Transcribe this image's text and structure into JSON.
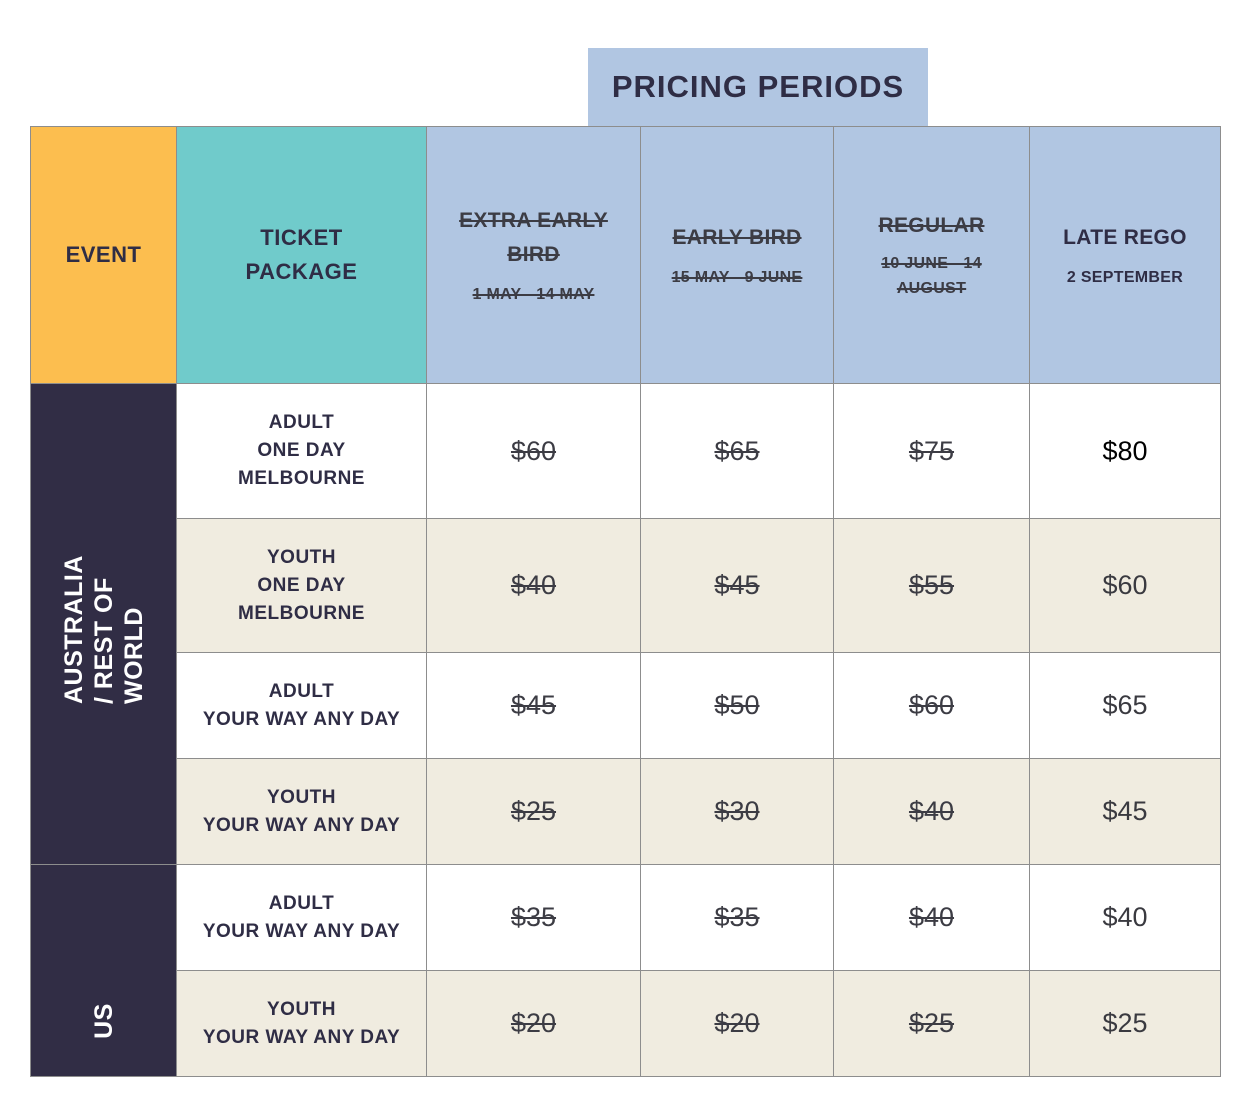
{
  "banner": {
    "title": "PRICING PERIODS"
  },
  "header": {
    "event": "EVENT",
    "ticket_line1": "TICKET",
    "ticket_line2": "PACKAGE",
    "periods": [
      {
        "name_line1": "EXTRA EARLY",
        "name_line2": "BIRD",
        "date_line1": "1 MAY - 14 MAY",
        "date_line2": "",
        "struck": true
      },
      {
        "name_line1": "EARLY BIRD",
        "name_line2": "",
        "date_line1": "15 MAY - 9 JUNE",
        "date_line2": "",
        "struck": true
      },
      {
        "name_line1": "REGULAR",
        "name_line2": "",
        "date_line1": "10 JUNE - 14",
        "date_line2": "AUGUST",
        "struck": true
      },
      {
        "name_line1": "LATE REGO",
        "name_line2": "",
        "date_line1": "2 SEPTEMBER",
        "date_line2": "",
        "struck": false
      }
    ]
  },
  "events": {
    "aus": "AUSTRALIA / REST OF WORLD",
    "us": "US"
  },
  "rows": [
    {
      "pkg1": "ADULT",
      "pkg2": "ONE DAY",
      "pkg3": "MELBOURNE",
      "p1": "$60",
      "p2": "$65",
      "p3": "$75",
      "p4": "$80"
    },
    {
      "pkg1": "YOUTH",
      "pkg2": "ONE DAY",
      "pkg3": "MELBOURNE",
      "p1": "$40",
      "p2": "$45",
      "p3": "$55",
      "p4": "$60"
    },
    {
      "pkg1": "ADULT",
      "pkg2": "YOUR WAY ANY DAY",
      "pkg3": "",
      "p1": "$45",
      "p2": "$50",
      "p3": "$60",
      "p4": "$65"
    },
    {
      "pkg1": "YOUTH",
      "pkg2": "YOUR WAY ANY DAY",
      "pkg3": "",
      "p1": "$25",
      "p2": "$30",
      "p3": "$40",
      "p4": "$45"
    },
    {
      "pkg1": "ADULT",
      "pkg2": "YOUR WAY ANY DAY",
      "pkg3": "",
      "p1": "$35",
      "p2": "$35",
      "p3": "$40",
      "p4": "$40"
    },
    {
      "pkg1": "YOUTH",
      "pkg2": "YOUR WAY ANY DAY",
      "pkg3": "",
      "p1": "$20",
      "p2": "$20",
      "p3": "$25",
      "p4": "$25"
    }
  ],
  "colors": {
    "event_header": "#fcbe4f",
    "ticket_header": "#70cbcb",
    "period_header": "#b1c6e2",
    "event_column": "#312d45",
    "alt_row": "#f0ece0"
  }
}
